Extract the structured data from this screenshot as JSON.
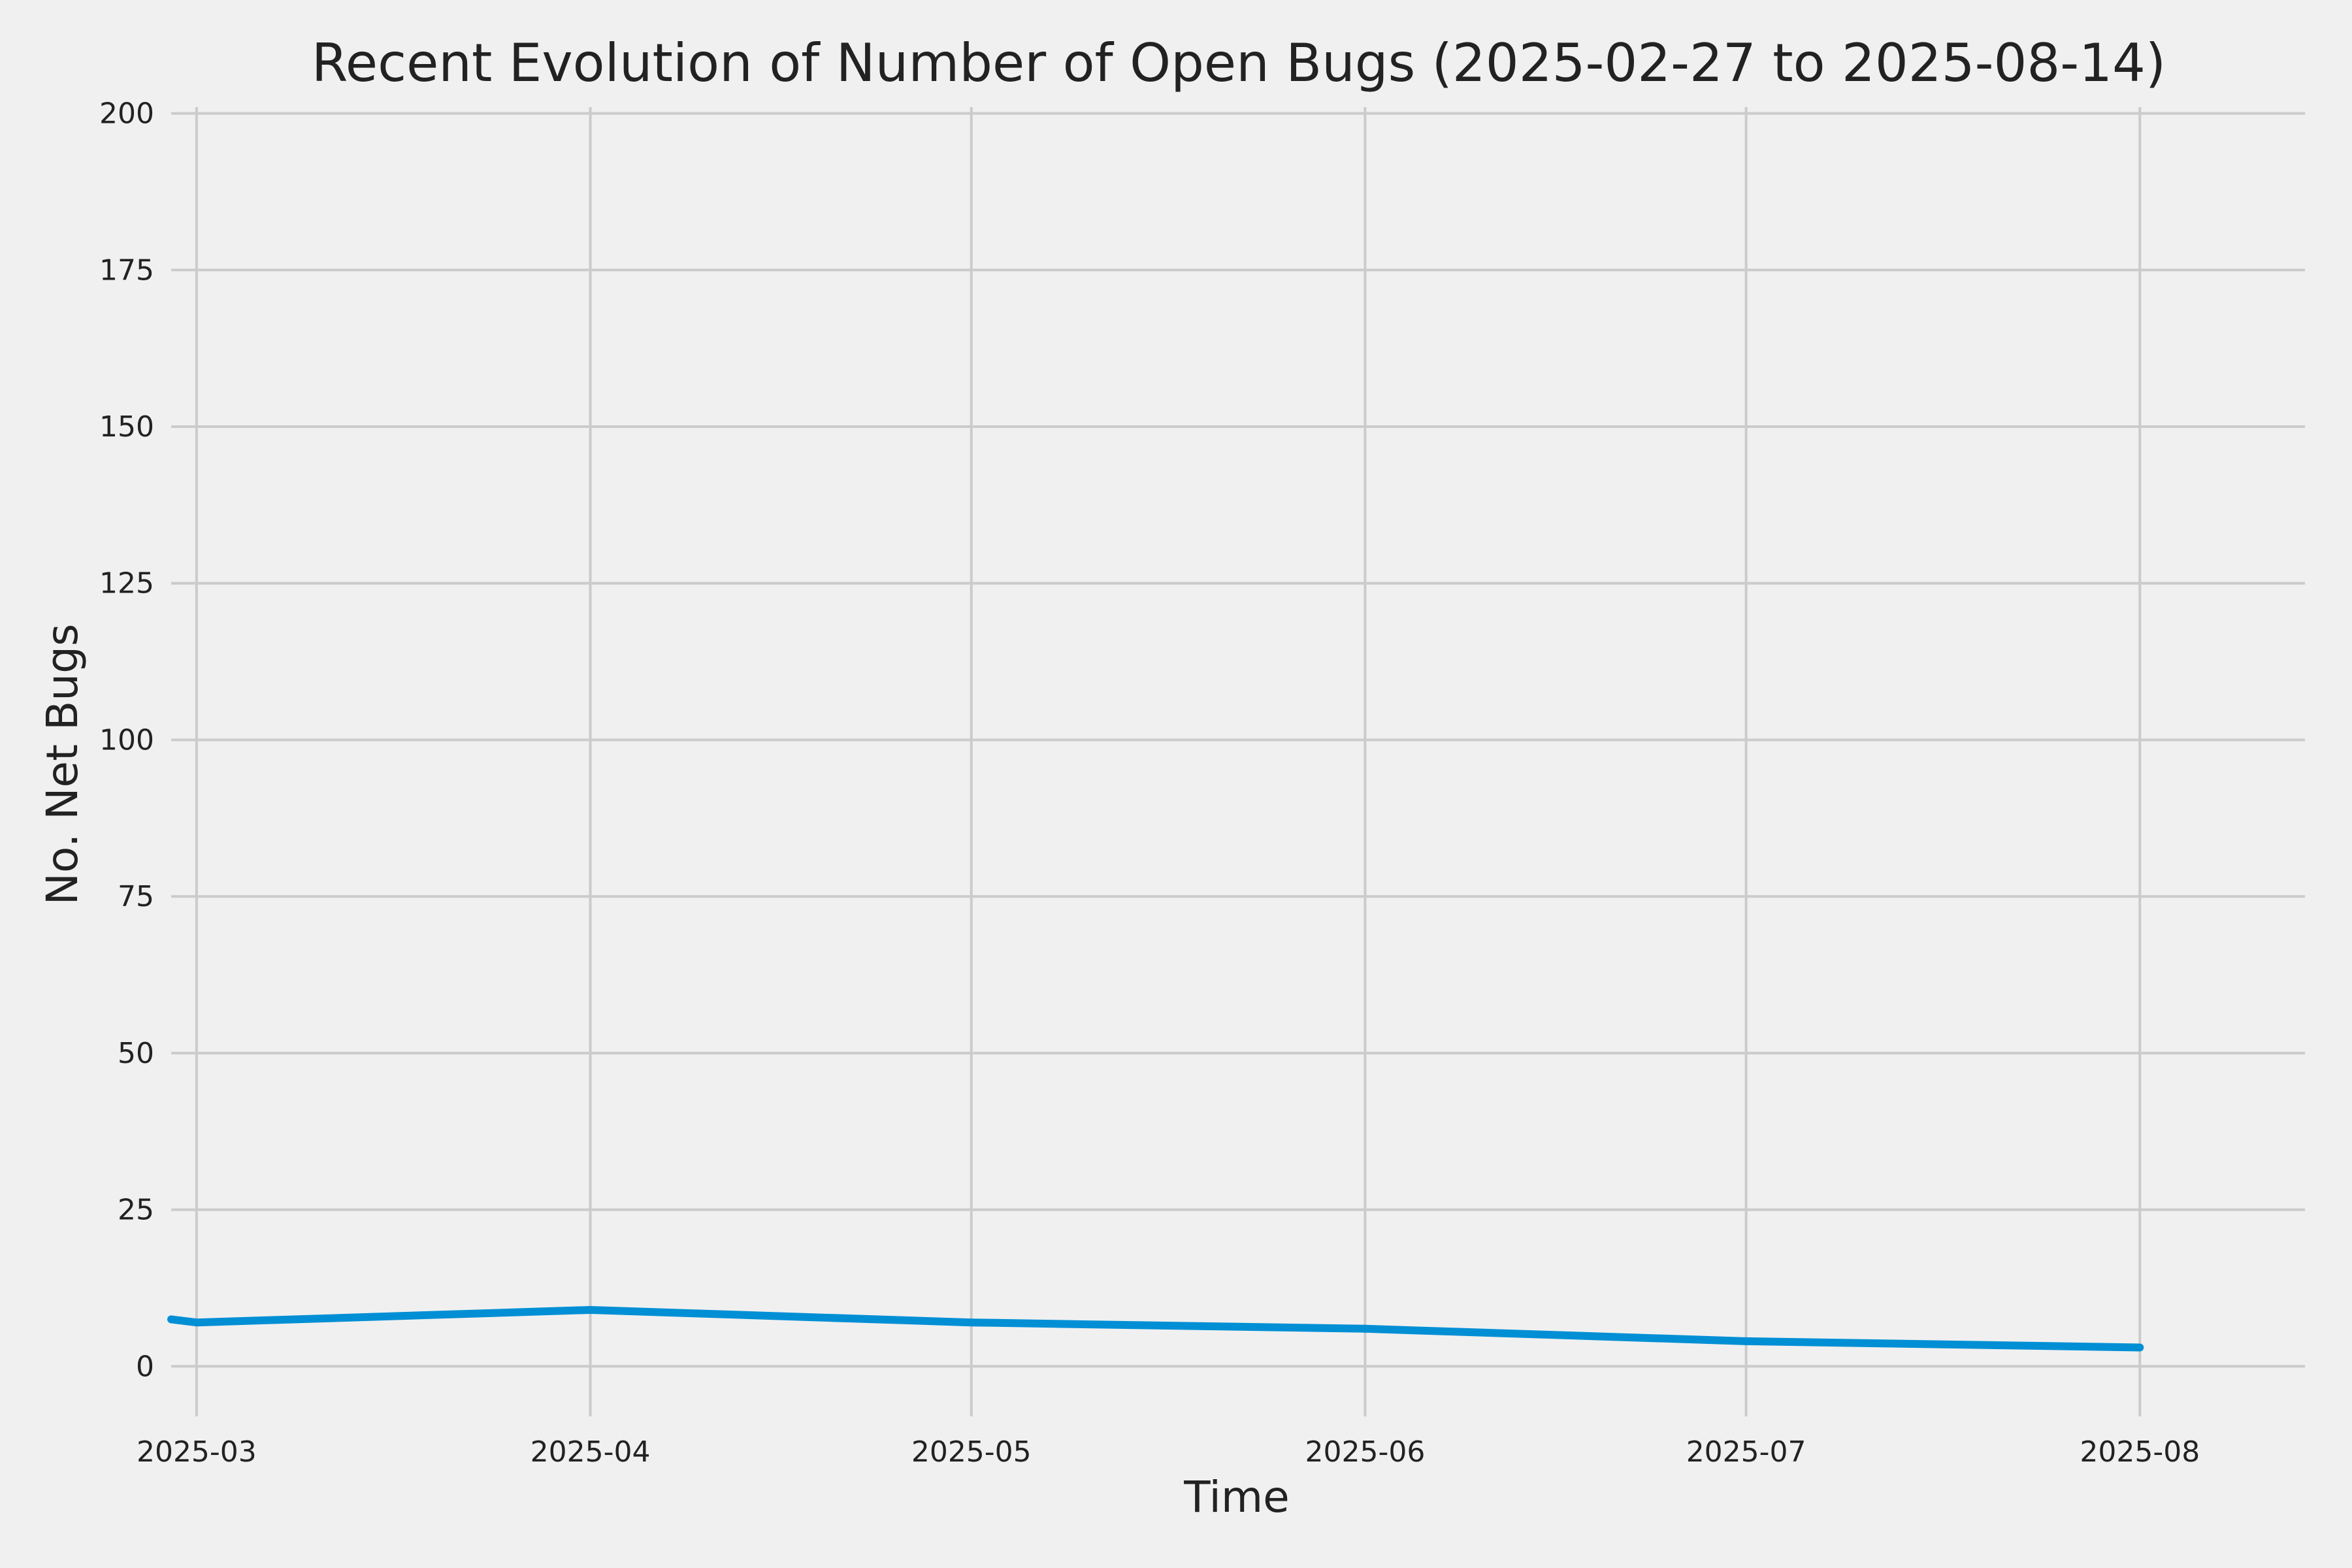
{
  "chart_data": {
    "type": "line",
    "title": "Recent Evolution of Number of Open Bugs (2025-02-27 to 2025-08-14)",
    "xlabel": "Time",
    "ylabel": "No. Net Bugs",
    "x_ticks": [
      "2025-03-01",
      "2025-04-01",
      "2025-05-01",
      "2025-06-01",
      "2025-07-01",
      "2025-08-01"
    ],
    "x_tick_labels": [
      "2025-03",
      "2025-04",
      "2025-05",
      "2025-06",
      "2025-07",
      "2025-08"
    ],
    "xlim": [
      "2025-02-27",
      "2025-08-14"
    ],
    "y_ticks": [
      0,
      25,
      50,
      75,
      100,
      125,
      150,
      175,
      200
    ],
    "y_tick_labels": [
      "0",
      "25",
      "50",
      "75",
      "100",
      "125",
      "150",
      "175",
      "200"
    ],
    "ylim": [
      -8,
      201
    ],
    "grid": true,
    "series": [
      {
        "color": "#008fd5",
        "x": [
          "2025-02-27",
          "2025-03-01",
          "2025-04-01",
          "2025-05-01",
          "2025-06-01",
          "2025-07-01",
          "2025-08-01"
        ],
        "y": [
          7.5,
          7,
          9,
          7,
          6,
          4,
          3
        ]
      }
    ]
  }
}
